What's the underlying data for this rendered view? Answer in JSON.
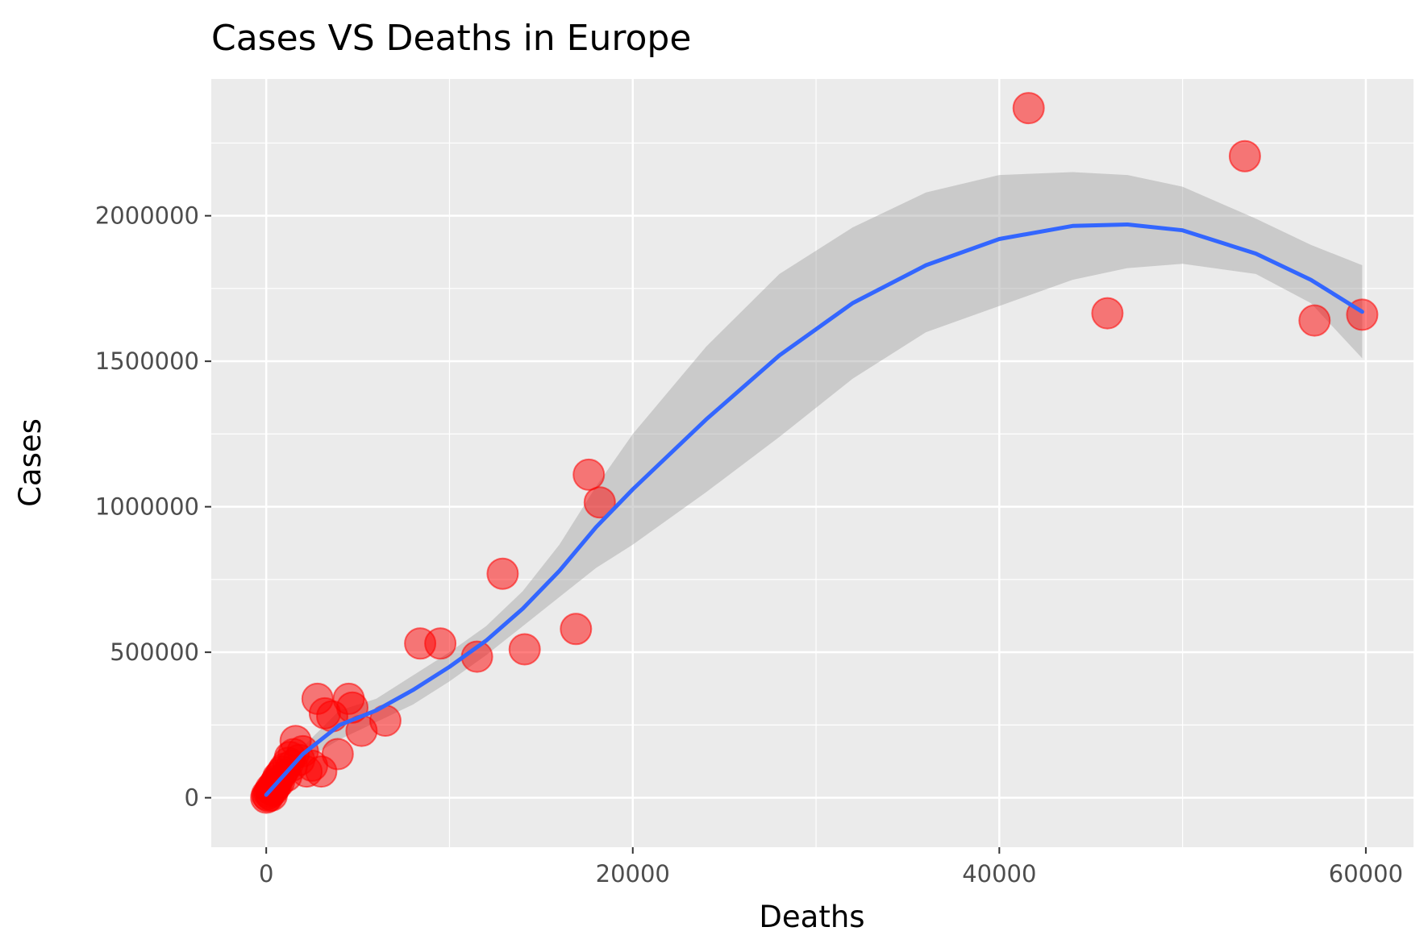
{
  "chart_data": {
    "type": "scatter",
    "title": "Cases VS Deaths in Europe",
    "xlabel": "Deaths",
    "ylabel": "Cases",
    "xlim": [
      -3000,
      62600
    ],
    "ylim": [
      -170000,
      2470000
    ],
    "x_ticks": [
      0,
      20000,
      40000,
      60000
    ],
    "x_tick_labels": [
      "0",
      "20000",
      "40000",
      "60000"
    ],
    "y_ticks": [
      0,
      500000,
      1000000,
      1500000,
      2000000
    ],
    "y_tick_labels": [
      "0",
      "500000",
      "1000000",
      "1500000",
      "2000000"
    ],
    "grid": true,
    "legend": "none",
    "colors": {
      "panel": "#ebebeb",
      "grid": "#ffffff",
      "point": "#ff0000",
      "smooth_line": "#3366ff",
      "ribbon": "#999999"
    },
    "series": [
      {
        "kind": "points",
        "points": [
          [
            0,
            0
          ],
          [
            50,
            10000
          ],
          [
            100,
            5000
          ],
          [
            150,
            15000
          ],
          [
            200,
            20000
          ],
          [
            250,
            30000
          ],
          [
            300,
            8000
          ],
          [
            350,
            25000
          ],
          [
            400,
            40000
          ],
          [
            450,
            35000
          ],
          [
            500,
            50000
          ],
          [
            550,
            45000
          ],
          [
            600,
            60000
          ],
          [
            650,
            70000
          ],
          [
            700,
            55000
          ],
          [
            800,
            80000
          ],
          [
            900,
            90000
          ],
          [
            1000,
            100000
          ],
          [
            1100,
            75000
          ],
          [
            1200,
            120000
          ],
          [
            1300,
            140000
          ],
          [
            1400,
            110000
          ],
          [
            1500,
            150000
          ],
          [
            1600,
            195000
          ],
          [
            1800,
            130000
          ],
          [
            2000,
            160000
          ],
          [
            2200,
            90000
          ],
          [
            2500,
            110000
          ],
          [
            2800,
            340000
          ],
          [
            3000,
            90000
          ],
          [
            3200,
            290000
          ],
          [
            3600,
            280000
          ],
          [
            3900,
            150000
          ],
          [
            4500,
            340000
          ],
          [
            4700,
            310000
          ],
          [
            5200,
            230000
          ],
          [
            6500,
            265000
          ],
          [
            8400,
            530000
          ],
          [
            9500,
            530000
          ],
          [
            11500,
            485000
          ],
          [
            12900,
            770000
          ],
          [
            14100,
            510000
          ],
          [
            16900,
            580000
          ],
          [
            17600,
            1110000
          ],
          [
            18200,
            1015000
          ],
          [
            41600,
            2370000
          ],
          [
            45900,
            1665000
          ],
          [
            53400,
            2205000
          ],
          [
            57200,
            1640000
          ],
          [
            59800,
            1660000
          ]
        ]
      },
      {
        "kind": "smooth",
        "x": [
          0,
          2000,
          4000,
          6000,
          8000,
          10000,
          12000,
          14000,
          16000,
          18000,
          20000,
          24000,
          28000,
          32000,
          36000,
          40000,
          44000,
          47000,
          50000,
          54000,
          57000,
          59800
        ],
        "y": [
          10000,
          150000,
          250000,
          300000,
          370000,
          450000,
          540000,
          650000,
          780000,
          930000,
          1060000,
          1300000,
          1520000,
          1700000,
          1830000,
          1920000,
          1965000,
          1970000,
          1950000,
          1870000,
          1780000,
          1670000
        ],
        "lower": [
          -10000,
          125000,
          200000,
          260000,
          320000,
          400000,
          490000,
          590000,
          690000,
          790000,
          870000,
          1050000,
          1240000,
          1440000,
          1600000,
          1690000,
          1780000,
          1820000,
          1835000,
          1800000,
          1700000,
          1510000
        ],
        "upper": [
          30000,
          175000,
          300000,
          340000,
          420000,
          500000,
          590000,
          710000,
          870000,
          1070000,
          1250000,
          1550000,
          1800000,
          1960000,
          2080000,
          2140000,
          2150000,
          2140000,
          2100000,
          1990000,
          1900000,
          1830000
        ]
      }
    ]
  }
}
